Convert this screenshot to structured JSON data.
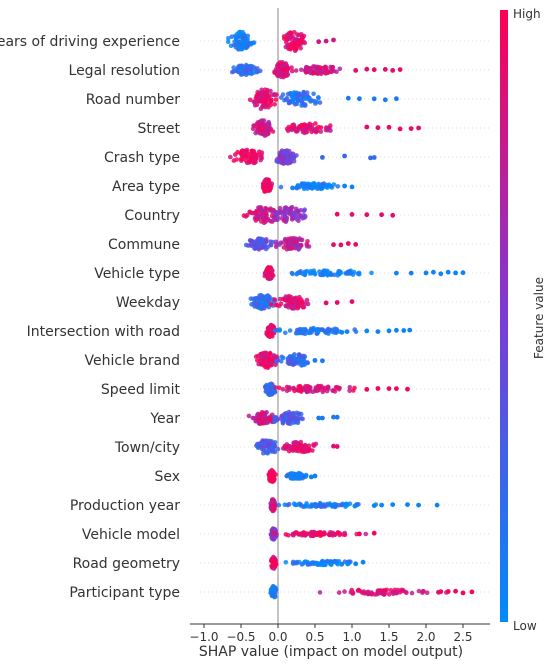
{
  "chart_data": {
    "type": "scatter",
    "subtype": "shap-beeswarm",
    "xlabel": "SHAP value (impact on model output)",
    "xticks": [
      -1.0,
      -0.5,
      0.0,
      0.5,
      1.0,
      1.5,
      2.0,
      2.5
    ],
    "xtick_labels": [
      "−1.0",
      "−0.5",
      "0.0",
      "0.5",
      "1.0",
      "1.5",
      "2.0",
      "2.5"
    ],
    "xlim": [
      -1.1,
      2.8
    ],
    "colorbar": {
      "label": "Feature value",
      "high": "High",
      "low": "Low",
      "high_color": "#ff0052",
      "low_color": "#008bfb"
    },
    "features": [
      {
        "name": "Years of driving experience",
        "blobs": [
          [
            -0.5,
            0.12,
            18,
            0.1
          ],
          [
            0.22,
            0.12,
            20,
            0.9
          ]
        ],
        "tail": [
          0.55,
          0.65,
          0.75
        ],
        "tail_v": 0.8
      },
      {
        "name": "Legal resolution",
        "blobs": [
          [
            -0.45,
            0.15,
            10,
            0.2
          ],
          [
            0.05,
            0.1,
            16,
            0.85
          ],
          [
            0.55,
            0.25,
            8,
            0.8
          ]
        ],
        "tail": [
          1.05,
          1.2,
          1.3,
          1.45,
          1.55,
          1.65
        ],
        "tail_v": 0.9
      },
      {
        "name": "Road number",
        "blobs": [
          [
            -0.2,
            0.15,
            20,
            0.9
          ],
          [
            0.3,
            0.25,
            14,
            0.15
          ]
        ],
        "tail": [
          0.95,
          1.1,
          1.3,
          1.45,
          1.6
        ],
        "tail_v": 0.1
      },
      {
        "name": "Street",
        "blobs": [
          [
            -0.2,
            0.12,
            16,
            0.8
          ],
          [
            0.4,
            0.3,
            10,
            0.85
          ]
        ],
        "tail": [
          1.2,
          1.35,
          1.5,
          1.65,
          1.8,
          1.9
        ],
        "tail_v": 0.9
      },
      {
        "name": "Crash type",
        "blobs": [
          [
            -0.4,
            0.2,
            14,
            0.95
          ],
          [
            0.1,
            0.12,
            14,
            0.5
          ]
        ],
        "tail": [
          0.6,
          0.9,
          1.25,
          1.3
        ],
        "tail_v": 0.2
      },
      {
        "name": "Area type",
        "blobs": [
          [
            -0.15,
            0.05,
            14,
            0.95
          ],
          [
            0.45,
            0.35,
            6,
            0.05
          ]
        ],
        "tail": [
          0.9,
          1.0
        ],
        "tail_v": 0.05
      },
      {
        "name": "Country",
        "blobs": [
          [
            -0.2,
            0.2,
            16,
            0.8
          ],
          [
            0.15,
            0.25,
            16,
            0.6
          ]
        ],
        "tail": [
          0.8,
          1.0,
          1.2,
          1.4,
          1.55
        ],
        "tail_v": 0.9
      },
      {
        "name": "Commune",
        "blobs": [
          [
            -0.25,
            0.15,
            12,
            0.4
          ],
          [
            0.2,
            0.2,
            12,
            0.75
          ]
        ],
        "tail": [
          0.75,
          0.85,
          0.95,
          1.05
        ],
        "tail_v": 0.9
      },
      {
        "name": "Vehicle type",
        "blobs": [
          [
            -0.12,
            0.05,
            12,
            0.95
          ],
          [
            0.7,
            0.6,
            5,
            0.05
          ]
        ],
        "tail": [
          1.6,
          1.8,
          2.0,
          2.1,
          2.2,
          2.3,
          2.4,
          2.5
        ],
        "tail_v": 0.05
      },
      {
        "name": "Weekday",
        "blobs": [
          [
            -0.2,
            0.15,
            14,
            0.2
          ],
          [
            0.2,
            0.2,
            14,
            0.85
          ]
        ],
        "tail": [
          0.65,
          0.8,
          1.0
        ],
        "tail_v": 0.9
      },
      {
        "name": "Intersection with road",
        "blobs": [
          [
            -0.1,
            0.06,
            12,
            0.95
          ],
          [
            0.5,
            0.5,
            6,
            0.1
          ]
        ],
        "tail": [
          1.2,
          1.35,
          1.5,
          1.6,
          1.7,
          1.78
        ],
        "tail_v": 0.05
      },
      {
        "name": "Vehicle brand",
        "blobs": [
          [
            -0.15,
            0.12,
            16,
            0.9
          ],
          [
            0.25,
            0.2,
            12,
            0.2
          ]
        ],
        "tail": [
          0.5,
          0.6
        ],
        "tail_v": 0.1
      },
      {
        "name": "Speed limit",
        "blobs": [
          [
            -0.1,
            0.06,
            12,
            0.2
          ],
          [
            0.5,
            0.5,
            6,
            0.9
          ]
        ],
        "tail": [
          1.2,
          1.35,
          1.5,
          1.6,
          1.75
        ],
        "tail_v": 0.95
      },
      {
        "name": "Year",
        "blobs": [
          [
            -0.2,
            0.15,
            12,
            0.8
          ],
          [
            0.15,
            0.2,
            12,
            0.3
          ]
        ],
        "tail": [
          0.55,
          0.6,
          0.75,
          0.8
        ],
        "tail_v": 0.1
      },
      {
        "name": "Town/city",
        "blobs": [
          [
            -0.15,
            0.15,
            14,
            0.3
          ],
          [
            0.3,
            0.25,
            10,
            0.85
          ]
        ],
        "tail": [
          0.75,
          0.8
        ],
        "tail_v": 0.9
      },
      {
        "name": "Sex",
        "blobs": [
          [
            -0.08,
            0.04,
            12,
            0.95
          ],
          [
            0.25,
            0.12,
            6,
            0.1
          ]
        ],
        "tail": [
          0.45,
          0.5
        ],
        "tail_v": 0.05
      },
      {
        "name": "Production year",
        "blobs": [
          [
            -0.07,
            0.03,
            12,
            0.8
          ],
          [
            0.6,
            0.5,
            4,
            0.1
          ]
        ],
        "tail": [
          1.3,
          1.4,
          1.55,
          1.75,
          1.9,
          2.15
        ],
        "tail_v": 0.05
      },
      {
        "name": "Vehicle model",
        "blobs": [
          [
            -0.06,
            0.03,
            12,
            0.5
          ],
          [
            0.5,
            0.45,
            4,
            0.9
          ]
        ],
        "tail": [
          1.1,
          1.3
        ],
        "tail_v": 0.95
      },
      {
        "name": "Road geometry",
        "blobs": [
          [
            -0.06,
            0.03,
            12,
            0.9
          ],
          [
            0.6,
            0.4,
            4,
            0.05
          ]
        ],
        "tail": [
          1.05,
          1.15
        ],
        "tail_v": 0.05
      },
      {
        "name": "Participant type",
        "blobs": [
          [
            -0.06,
            0.03,
            12,
            0.05
          ],
          [
            1.4,
            0.7,
            5,
            0.85
          ]
        ],
        "tail": [
          2.2,
          2.3,
          2.4,
          2.5,
          2.62
        ],
        "tail_v": 0.95
      }
    ]
  }
}
